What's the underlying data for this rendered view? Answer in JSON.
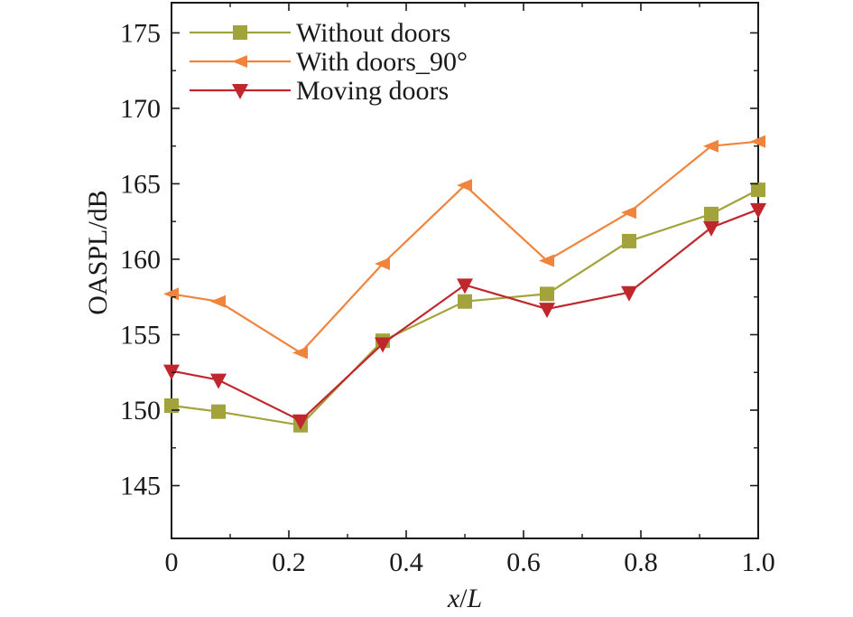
{
  "chart_data": {
    "type": "line",
    "title": "",
    "xlabel": {
      "var": "x",
      "sep": "/",
      "unit": "L"
    },
    "ylabel": "OASPL/dB",
    "xlim": [
      0,
      1.0
    ],
    "ylim": [
      141.5,
      177
    ],
    "x_ticks": [
      {
        "value": 0,
        "label": "0"
      },
      {
        "value": 0.2,
        "label": "0.2"
      },
      {
        "value": 0.4,
        "label": "0.4"
      },
      {
        "value": 0.6,
        "label": "0.6"
      },
      {
        "value": 0.8,
        "label": "0.8"
      },
      {
        "value": 1.0,
        "label": "1.0"
      }
    ],
    "y_ticks": [
      {
        "value": 145,
        "label": "145"
      },
      {
        "value": 150,
        "label": "150"
      },
      {
        "value": 155,
        "label": "155"
      },
      {
        "value": 160,
        "label": "160"
      },
      {
        "value": 165,
        "label": "165"
      },
      {
        "value": 170,
        "label": "170"
      },
      {
        "value": 175,
        "label": "175"
      }
    ],
    "grid": false,
    "legend_position": "top-left",
    "series": [
      {
        "name": "Without doors",
        "color": "#a3a33b",
        "marker": "square",
        "x": [
          0,
          0.08,
          0.22,
          0.36,
          0.5,
          0.64,
          0.78,
          0.92,
          1.0
        ],
        "y": [
          150.3,
          149.9,
          149.0,
          154.6,
          157.2,
          157.7,
          161.2,
          163.0,
          164.6
        ]
      },
      {
        "name": "With doors_90°",
        "color": "#f0843c",
        "marker": "triangle-left",
        "x": [
          0,
          0.08,
          0.22,
          0.36,
          0.5,
          0.64,
          0.78,
          0.92,
          1.0
        ],
        "y": [
          157.7,
          157.2,
          153.8,
          159.7,
          164.9,
          159.9,
          163.1,
          167.5,
          167.8
        ]
      },
      {
        "name": "Moving doors",
        "color": "#c0272d",
        "marker": "triangle-down",
        "x": [
          0,
          0.08,
          0.22,
          0.36,
          0.5,
          0.64,
          0.78,
          0.92,
          1.0
        ],
        "y": [
          152.6,
          152.0,
          149.3,
          154.4,
          158.3,
          156.7,
          157.8,
          162.1,
          163.3
        ]
      }
    ]
  }
}
